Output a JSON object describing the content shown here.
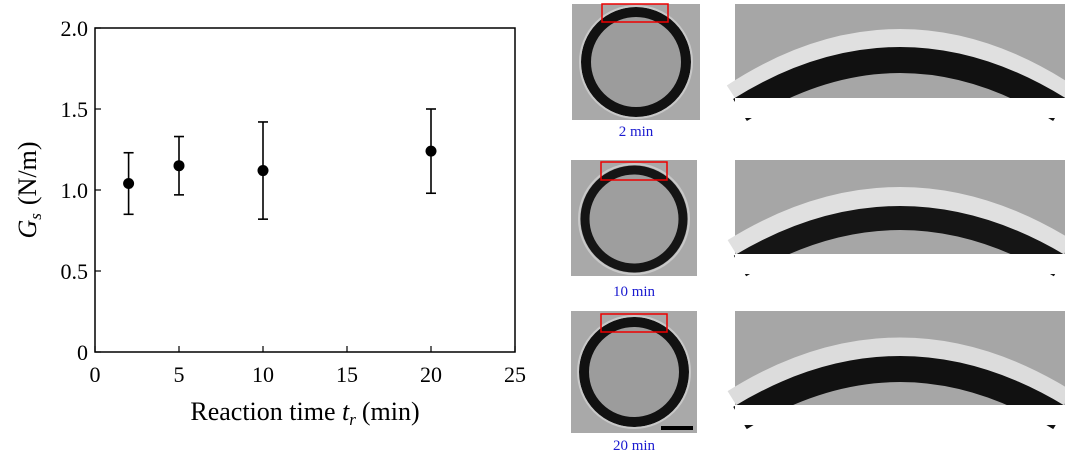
{
  "chart_data": {
    "type": "errorbar",
    "xlabel": {
      "text": "Reaction time",
      "symbol": "t",
      "subscript": "r",
      "unit": "(min)"
    },
    "ylabel": {
      "symbol": "G",
      "subscript": "s",
      "unit": "(N/m)"
    },
    "series": [
      {
        "color": "#000000",
        "x": [
          2,
          5,
          10,
          20
        ],
        "values": [
          1.04,
          1.15,
          1.12,
          1.24
        ],
        "errors": [
          0.19,
          0.18,
          0.3,
          0.26
        ]
      }
    ],
    "xlim": [
      0,
      25
    ],
    "xticks": [
      0,
      5,
      10,
      15,
      20,
      25
    ],
    "ylim": [
      0,
      2
    ],
    "yticks": [
      0,
      0.5,
      {
        "value": 1,
        "label": "1.0"
      },
      1.5,
      {
        "value": 2,
        "label": "2.0"
      }
    ]
  },
  "images": [
    {
      "caption": "2 min"
    },
    {
      "caption": "10 min"
    },
    {
      "caption": "20 min"
    }
  ]
}
